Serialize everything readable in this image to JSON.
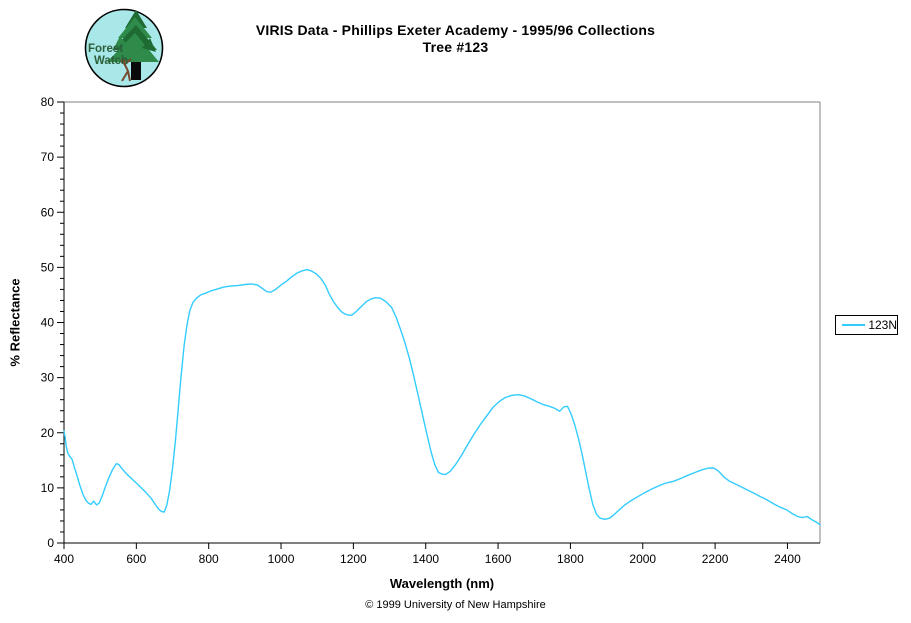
{
  "logo": {
    "line1": "Forest",
    "line2": "Watch"
  },
  "header": {
    "title": "VIRIS Data - Phillips Exeter Academy - 1995/96 Collections",
    "subtitle": "Tree #123"
  },
  "legend": {
    "label": "123N"
  },
  "footer": {
    "copyright": "© 1999 University of New Hampshire"
  },
  "colors": {
    "series": "#33CCFF",
    "plot_border": "#808080",
    "axis": "#000000",
    "logo_bg": "#A9E8E8",
    "logo_foliage": "#2E8B4A",
    "logo_foliage_dark": "#1E6B33",
    "logo_trunk": "#0A0A0A",
    "logo_person": "#7A4A2F",
    "logo_text": "#2B5E3A"
  },
  "chart_data": {
    "type": "line",
    "title": "VIRIS Data - Phillips Exeter Academy - 1995/96 Collections",
    "subtitle": "Tree #123",
    "xlabel": "Wavelength (nm)",
    "ylabel": "% Reflectance",
    "xlim": [
      400,
      2490
    ],
    "ylim": [
      0,
      80
    ],
    "x_ticks": [
      400,
      600,
      800,
      1000,
      1200,
      1400,
      1600,
      1800,
      2000,
      2200,
      2400
    ],
    "y_ticks": [
      0,
      10,
      20,
      30,
      40,
      50,
      60,
      70,
      80
    ],
    "y_minor_tick_step": 2,
    "grid": false,
    "legend_position": "right-outside",
    "series": [
      {
        "name": "123N",
        "color": "#33CCFF",
        "points": [
          [
            400,
            20.3
          ],
          [
            403,
            19.2
          ],
          [
            406,
            17.6
          ],
          [
            410,
            16.4
          ],
          [
            416,
            15.7
          ],
          [
            422,
            15.2
          ],
          [
            428,
            13.9
          ],
          [
            435,
            12.4
          ],
          [
            443,
            10.6
          ],
          [
            452,
            8.9
          ],
          [
            460,
            7.8
          ],
          [
            468,
            7.2
          ],
          [
            475,
            7.0
          ],
          [
            482,
            7.6
          ],
          [
            490,
            6.9
          ],
          [
            498,
            7.3
          ],
          [
            506,
            8.6
          ],
          [
            515,
            10.3
          ],
          [
            525,
            12.0
          ],
          [
            535,
            13.4
          ],
          [
            545,
            14.4
          ],
          [
            552,
            14.2
          ],
          [
            560,
            13.5
          ],
          [
            572,
            12.6
          ],
          [
            585,
            11.8
          ],
          [
            598,
            11.0
          ],
          [
            612,
            10.1
          ],
          [
            626,
            9.2
          ],
          [
            640,
            8.2
          ],
          [
            652,
            7.0
          ],
          [
            662,
            6.1
          ],
          [
            670,
            5.7
          ],
          [
            677,
            5.6
          ],
          [
            684,
            6.8
          ],
          [
            692,
            9.5
          ],
          [
            700,
            13.5
          ],
          [
            708,
            18.5
          ],
          [
            716,
            24.5
          ],
          [
            724,
            30.5
          ],
          [
            732,
            35.8
          ],
          [
            740,
            39.6
          ],
          [
            748,
            42.2
          ],
          [
            756,
            43.6
          ],
          [
            766,
            44.4
          ],
          [
            778,
            45.0
          ],
          [
            790,
            45.3
          ],
          [
            805,
            45.7
          ],
          [
            820,
            46.0
          ],
          [
            840,
            46.4
          ],
          [
            860,
            46.6
          ],
          [
            880,
            46.7
          ],
          [
            900,
            46.9
          ],
          [
            918,
            47.0
          ],
          [
            935,
            46.8
          ],
          [
            948,
            46.2
          ],
          [
            960,
            45.6
          ],
          [
            972,
            45.5
          ],
          [
            985,
            46.0
          ],
          [
            1000,
            46.8
          ],
          [
            1015,
            47.5
          ],
          [
            1030,
            48.3
          ],
          [
            1045,
            49.0
          ],
          [
            1060,
            49.4
          ],
          [
            1072,
            49.6
          ],
          [
            1085,
            49.3
          ],
          [
            1098,
            48.8
          ],
          [
            1110,
            48.0
          ],
          [
            1122,
            46.8
          ],
          [
            1133,
            45.2
          ],
          [
            1145,
            43.8
          ],
          [
            1158,
            42.6
          ],
          [
            1170,
            41.8
          ],
          [
            1182,
            41.4
          ],
          [
            1195,
            41.3
          ],
          [
            1208,
            42.0
          ],
          [
            1222,
            42.9
          ],
          [
            1236,
            43.8
          ],
          [
            1250,
            44.3
          ],
          [
            1262,
            44.5
          ],
          [
            1275,
            44.4
          ],
          [
            1290,
            43.8
          ],
          [
            1305,
            42.8
          ],
          [
            1318,
            41.0
          ],
          [
            1330,
            38.8
          ],
          [
            1342,
            36.5
          ],
          [
            1355,
            33.5
          ],
          [
            1368,
            30.0
          ],
          [
            1380,
            26.5
          ],
          [
            1392,
            23.0
          ],
          [
            1404,
            19.5
          ],
          [
            1415,
            16.5
          ],
          [
            1425,
            14.2
          ],
          [
            1435,
            12.8
          ],
          [
            1445,
            12.5
          ],
          [
            1455,
            12.4
          ],
          [
            1468,
            13.0
          ],
          [
            1482,
            14.2
          ],
          [
            1498,
            15.8
          ],
          [
            1515,
            17.7
          ],
          [
            1532,
            19.6
          ],
          [
            1550,
            21.4
          ],
          [
            1568,
            23.0
          ],
          [
            1586,
            24.6
          ],
          [
            1604,
            25.7
          ],
          [
            1620,
            26.4
          ],
          [
            1638,
            26.8
          ],
          [
            1655,
            26.9
          ],
          [
            1672,
            26.7
          ],
          [
            1690,
            26.2
          ],
          [
            1708,
            25.6
          ],
          [
            1725,
            25.1
          ],
          [
            1742,
            24.8
          ],
          [
            1758,
            24.4
          ],
          [
            1770,
            23.9
          ],
          [
            1782,
            24.7
          ],
          [
            1792,
            24.8
          ],
          [
            1802,
            23.4
          ],
          [
            1812,
            21.4
          ],
          [
            1822,
            19.0
          ],
          [
            1832,
            16.2
          ],
          [
            1842,
            13.0
          ],
          [
            1852,
            9.8
          ],
          [
            1862,
            7.0
          ],
          [
            1872,
            5.2
          ],
          [
            1882,
            4.5
          ],
          [
            1895,
            4.3
          ],
          [
            1908,
            4.5
          ],
          [
            1920,
            5.1
          ],
          [
            1935,
            6.0
          ],
          [
            1950,
            6.9
          ],
          [
            1968,
            7.7
          ],
          [
            1986,
            8.4
          ],
          [
            2005,
            9.1
          ],
          [
            2025,
            9.8
          ],
          [
            2045,
            10.4
          ],
          [
            2065,
            10.9
          ],
          [
            2085,
            11.2
          ],
          [
            2105,
            11.7
          ],
          [
            2125,
            12.3
          ],
          [
            2145,
            12.8
          ],
          [
            2165,
            13.3
          ],
          [
            2182,
            13.6
          ],
          [
            2196,
            13.6
          ],
          [
            2210,
            13.0
          ],
          [
            2224,
            12.0
          ],
          [
            2240,
            11.2
          ],
          [
            2256,
            10.7
          ],
          [
            2272,
            10.2
          ],
          [
            2290,
            9.6
          ],
          [
            2308,
            9.0
          ],
          [
            2326,
            8.4
          ],
          [
            2344,
            7.8
          ],
          [
            2362,
            7.1
          ],
          [
            2380,
            6.5
          ],
          [
            2398,
            6.0
          ],
          [
            2414,
            5.3
          ],
          [
            2428,
            4.8
          ],
          [
            2442,
            4.6
          ],
          [
            2455,
            4.8
          ],
          [
            2468,
            4.2
          ],
          [
            2482,
            3.7
          ],
          [
            2490,
            3.3
          ]
        ]
      }
    ]
  }
}
